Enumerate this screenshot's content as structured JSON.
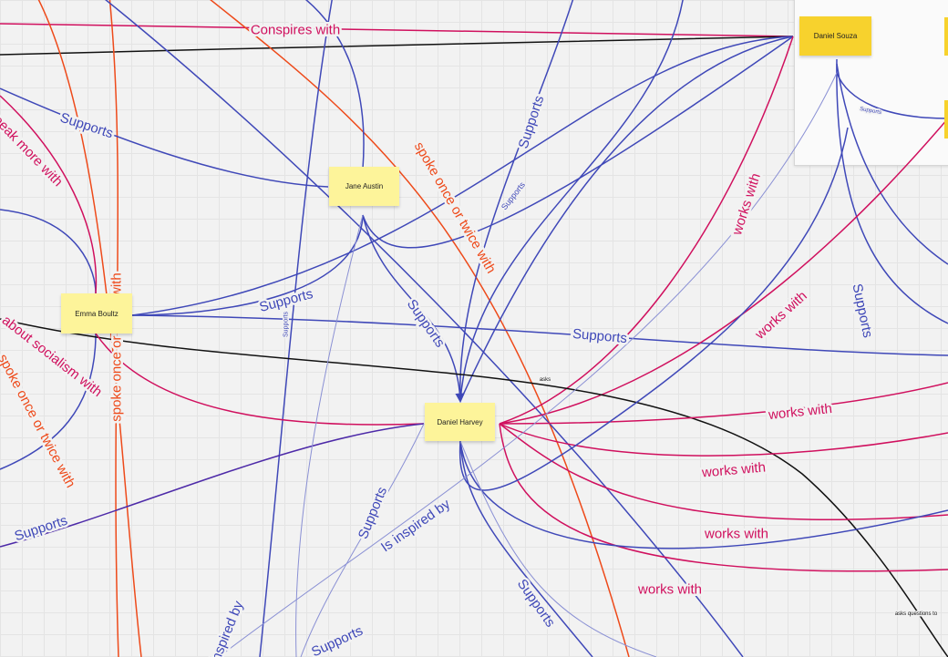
{
  "notes": [
    {
      "id": "jane",
      "label": "Jane Austin"
    },
    {
      "id": "emma",
      "label": "Emma Boultz"
    },
    {
      "id": "harvey",
      "label": "Daniel Harvey"
    },
    {
      "id": "souza",
      "label": "Daniel Souza"
    }
  ],
  "edge_labels": {
    "conspires": "Conspires with",
    "supports_a": "Supports",
    "speak_more": "speak more with",
    "spoke_center": "spoke once or twice with",
    "spoke_vertical": "spoke once or twice with",
    "spoke_left": "spoke once or twice with",
    "socialism": "about socialism with",
    "supports_small_mid": "Supports",
    "supports_emma_jane": "Supports",
    "supports_jane_harvey": "Supports",
    "supports_emma_right": "Supports",
    "supports_top": "Supports",
    "supports_tiny_tilt": "Supports",
    "supports_frame": "Supports",
    "works_upper": "works with",
    "works_mid": "works with",
    "supports_right_vertical": "Supports",
    "asks": "asks",
    "works_r1": "works with",
    "works_r2": "works with",
    "works_r3": "works with",
    "works_r4": "works with",
    "supports_bottom_left": "Supports",
    "supports_harvey_down": "Supports",
    "inspired_mid": "Is inspired by",
    "supports_bottom_right": "Supports",
    "inspired_bottom": "inspired by",
    "supports_bottom_center": "Supports",
    "asks_questions": "asks questions to"
  },
  "colors": {
    "blue": "#3f48b8",
    "pale_blue": "#8a90d4",
    "magenta": "#d0105e",
    "orange": "#ee4a1a",
    "black": "#111111",
    "purple": "#4d2aa8",
    "note_pale": "#fdf49a",
    "note_gold": "#f7d22d"
  }
}
